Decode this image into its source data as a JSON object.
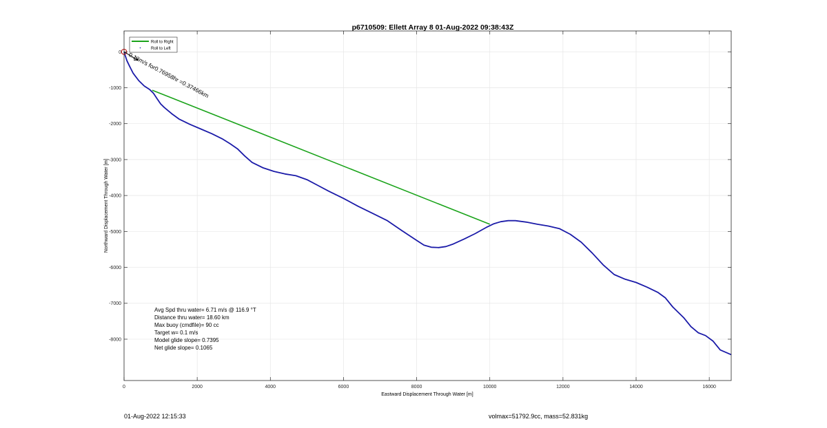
{
  "chart_data": {
    "type": "line",
    "title": "p6710509: Ellett Array 8 01-Aug-2022 09:38:43Z",
    "xlabel": "Eastward Displacement Through Water [m]",
    "ylabel": "Northward Displacement Through Water [m]",
    "xlim": [
      0,
      16600
    ],
    "ylim": [
      -9150,
      580
    ],
    "x_ticks": [
      0,
      2000,
      4000,
      6000,
      8000,
      10000,
      12000,
      14000,
      16000
    ],
    "y_ticks": [
      -8000,
      -7000,
      -6000,
      -5000,
      -4000,
      -3000,
      -2000,
      -1000,
      0
    ],
    "grid": true,
    "legend_position": "top-left",
    "legend": [
      "Roll to Right",
      "Roll to Left"
    ],
    "colors": {
      "roll_right": "#1aa31a",
      "roll_left": "#1a1aa8",
      "start_marker": "#cc2222",
      "current_arrow": "#000000",
      "grid": "#e6e6e6"
    },
    "series": [
      {
        "name": "Roll to Left",
        "x": [
          0,
          30,
          80,
          150,
          250,
          400,
          550,
          700,
          800,
          900,
          1000,
          1100,
          1300,
          1500,
          1800,
          2100,
          2400,
          2700,
          2900,
          3100,
          3300,
          3500,
          3800,
          4100,
          4400,
          4700,
          5000,
          5300,
          5600,
          6000,
          6400,
          6800,
          7200,
          7600,
          8000,
          8200,
          8400,
          8600,
          8800,
          9000,
          9300,
          9600,
          9900,
          10100,
          10300,
          10500,
          10700,
          11000,
          11300,
          11600,
          11900,
          12200,
          12500,
          12800,
          13100,
          13400,
          13700,
          14000,
          14300,
          14600,
          14800,
          15000,
          15300,
          15500,
          15700,
          15900,
          16100,
          16300,
          16600
        ],
        "y": [
          0,
          -100,
          -250,
          -400,
          -600,
          -800,
          -950,
          -1050,
          -1150,
          -1300,
          -1450,
          -1550,
          -1720,
          -1870,
          -2020,
          -2150,
          -2280,
          -2430,
          -2560,
          -2700,
          -2900,
          -3080,
          -3230,
          -3330,
          -3400,
          -3450,
          -3560,
          -3720,
          -3880,
          -4080,
          -4300,
          -4500,
          -4700,
          -4980,
          -5250,
          -5380,
          -5440,
          -5450,
          -5420,
          -5350,
          -5210,
          -5060,
          -4890,
          -4790,
          -4730,
          -4700,
          -4700,
          -4740,
          -4800,
          -4850,
          -4920,
          -5080,
          -5300,
          -5600,
          -5930,
          -6200,
          -6330,
          -6420,
          -6550,
          -6700,
          -6850,
          -7100,
          -7400,
          -7650,
          -7820,
          -7900,
          -8050,
          -8300,
          -8430
        ]
      },
      {
        "name": "Roll to Right",
        "x": [
          770,
          10000
        ],
        "y": [
          -1070,
          -4800
        ]
      }
    ],
    "current_vector_label": "0.13m/s for0.76958hr =0.37466km",
    "stats": [
      "Avg Spd thru water=  6.71 m/s @ 116.9 °T",
      "Distance thru water= 18.60 km",
      "Max buoy (cmdfile)= 90 cc",
      "Target w= 0.1 m/s",
      "Model glide slope= 0.7395",
      "Net glide slope= 0.1065"
    ]
  },
  "footer": {
    "timestamp": "01-Aug-2022 12:15:33",
    "volmax": "volmax=51792.9cc, mass=52.831kg"
  }
}
